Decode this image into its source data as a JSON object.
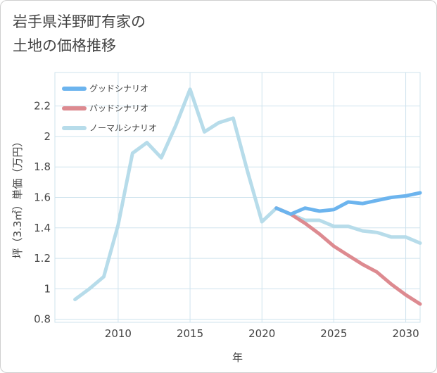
{
  "title": "岩手県洋野町有家の\n土地の価格推移",
  "chart_data": {
    "type": "line",
    "xlabel": "年",
    "ylabel": "坪（3.3㎡）単価（万円）",
    "xlim": [
      2005.6,
      2031.0
    ],
    "ylim": [
      0.78,
      2.42
    ],
    "x_ticks": [
      2010,
      2015,
      2020,
      2025,
      2030
    ],
    "y_ticks": [
      0.8,
      1,
      1.2,
      1.4,
      1.6,
      1.8,
      2,
      2.2
    ],
    "grid": true,
    "legend_position": "top-left",
    "series": [
      {
        "name": "グッドシナリオ",
        "color": "#6cb4ee",
        "x": [
          2021,
          2022,
          2023,
          2024,
          2025,
          2026,
          2027,
          2028,
          2029,
          2030,
          2031
        ],
        "y": [
          1.53,
          1.49,
          1.53,
          1.51,
          1.52,
          1.57,
          1.56,
          1.58,
          1.6,
          1.61,
          1.63
        ]
      },
      {
        "name": "バッドシナリオ",
        "color": "#dd8a90",
        "x": [
          2021,
          2022,
          2023,
          2024,
          2025,
          2026,
          2027,
          2028,
          2029,
          2030,
          2031
        ],
        "y": [
          1.53,
          1.49,
          1.43,
          1.36,
          1.28,
          1.22,
          1.16,
          1.11,
          1.03,
          0.96,
          0.9
        ]
      },
      {
        "name": "ノーマルシナリオ",
        "color": "#b7dcea",
        "x": [
          2007,
          2008,
          2009,
          2010,
          2011,
          2012,
          2013,
          2014,
          2015,
          2016,
          2017,
          2018,
          2019,
          2020,
          2021,
          2022,
          2023,
          2024,
          2025,
          2026,
          2027,
          2028,
          2029,
          2030,
          2031
        ],
        "y": [
          0.93,
          1.0,
          1.08,
          1.42,
          1.89,
          1.96,
          1.86,
          2.07,
          2.31,
          2.03,
          2.09,
          2.12,
          1.77,
          1.44,
          1.53,
          1.49,
          1.45,
          1.45,
          1.41,
          1.41,
          1.38,
          1.37,
          1.34,
          1.34,
          1.3
        ]
      }
    ]
  }
}
